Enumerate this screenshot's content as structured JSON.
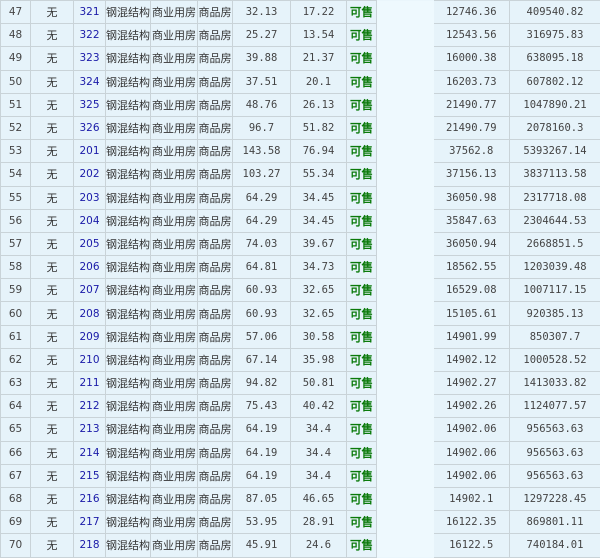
{
  "rows": [
    {
      "idx": "47",
      "none": "无",
      "room": "321",
      "structure": "钢混结构",
      "usage": "商业用房",
      "type": "商品房",
      "area": "32.13",
      "inner_area": "17.22",
      "status": "可售",
      "unit_price": "12746.36",
      "total": "409540.82"
    },
    {
      "idx": "48",
      "none": "无",
      "room": "322",
      "structure": "钢混结构",
      "usage": "商业用房",
      "type": "商品房",
      "area": "25.27",
      "inner_area": "13.54",
      "status": "可售",
      "unit_price": "12543.56",
      "total": "316975.83"
    },
    {
      "idx": "49",
      "none": "无",
      "room": "323",
      "structure": "钢混结构",
      "usage": "商业用房",
      "type": "商品房",
      "area": "39.88",
      "inner_area": "21.37",
      "status": "可售",
      "unit_price": "16000.38",
      "total": "638095.18"
    },
    {
      "idx": "50",
      "none": "无",
      "room": "324",
      "structure": "钢混结构",
      "usage": "商业用房",
      "type": "商品房",
      "area": "37.51",
      "inner_area": "20.1",
      "status": "可售",
      "unit_price": "16203.73",
      "total": "607802.12"
    },
    {
      "idx": "51",
      "none": "无",
      "room": "325",
      "structure": "钢混结构",
      "usage": "商业用房",
      "type": "商品房",
      "area": "48.76",
      "inner_area": "26.13",
      "status": "可售",
      "unit_price": "21490.77",
      "total": "1047890.21"
    },
    {
      "idx": "52",
      "none": "无",
      "room": "326",
      "structure": "钢混结构",
      "usage": "商业用房",
      "type": "商品房",
      "area": "96.7",
      "inner_area": "51.82",
      "status": "可售",
      "unit_price": "21490.79",
      "total": "2078160.3"
    },
    {
      "idx": "53",
      "none": "无",
      "room": "201",
      "structure": "钢混结构",
      "usage": "商业用房",
      "type": "商品房",
      "area": "143.58",
      "inner_area": "76.94",
      "status": "可售",
      "unit_price": "37562.8",
      "total": "5393267.14"
    },
    {
      "idx": "54",
      "none": "无",
      "room": "202",
      "structure": "钢混结构",
      "usage": "商业用房",
      "type": "商品房",
      "area": "103.27",
      "inner_area": "55.34",
      "status": "可售",
      "unit_price": "37156.13",
      "total": "3837113.58"
    },
    {
      "idx": "55",
      "none": "无",
      "room": "203",
      "structure": "钢混结构",
      "usage": "商业用房",
      "type": "商品房",
      "area": "64.29",
      "inner_area": "34.45",
      "status": "可售",
      "unit_price": "36050.98",
      "total": "2317718.08"
    },
    {
      "idx": "56",
      "none": "无",
      "room": "204",
      "structure": "钢混结构",
      "usage": "商业用房",
      "type": "商品房",
      "area": "64.29",
      "inner_area": "34.45",
      "status": "可售",
      "unit_price": "35847.63",
      "total": "2304644.53"
    },
    {
      "idx": "57",
      "none": "无",
      "room": "205",
      "structure": "钢混结构",
      "usage": "商业用房",
      "type": "商品房",
      "area": "74.03",
      "inner_area": "39.67",
      "status": "可售",
      "unit_price": "36050.94",
      "total": "2668851.5"
    },
    {
      "idx": "58",
      "none": "无",
      "room": "206",
      "structure": "钢混结构",
      "usage": "商业用房",
      "type": "商品房",
      "area": "64.81",
      "inner_area": "34.73",
      "status": "可售",
      "unit_price": "18562.55",
      "total": "1203039.48"
    },
    {
      "idx": "59",
      "none": "无",
      "room": "207",
      "structure": "钢混结构",
      "usage": "商业用房",
      "type": "商品房",
      "area": "60.93",
      "inner_area": "32.65",
      "status": "可售",
      "unit_price": "16529.08",
      "total": "1007117.15"
    },
    {
      "idx": "60",
      "none": "无",
      "room": "208",
      "structure": "钢混结构",
      "usage": "商业用房",
      "type": "商品房",
      "area": "60.93",
      "inner_area": "32.65",
      "status": "可售",
      "unit_price": "15105.61",
      "total": "920385.13"
    },
    {
      "idx": "61",
      "none": "无",
      "room": "209",
      "structure": "钢混结构",
      "usage": "商业用房",
      "type": "商品房",
      "area": "57.06",
      "inner_area": "30.58",
      "status": "可售",
      "unit_price": "14901.99",
      "total": "850307.7"
    },
    {
      "idx": "62",
      "none": "无",
      "room": "210",
      "structure": "钢混结构",
      "usage": "商业用房",
      "type": "商品房",
      "area": "67.14",
      "inner_area": "35.98",
      "status": "可售",
      "unit_price": "14902.12",
      "total": "1000528.52"
    },
    {
      "idx": "63",
      "none": "无",
      "room": "211",
      "structure": "钢混结构",
      "usage": "商业用房",
      "type": "商品房",
      "area": "94.82",
      "inner_area": "50.81",
      "status": "可售",
      "unit_price": "14902.27",
      "total": "1413033.82"
    },
    {
      "idx": "64",
      "none": "无",
      "room": "212",
      "structure": "钢混结构",
      "usage": "商业用房",
      "type": "商品房",
      "area": "75.43",
      "inner_area": "40.42",
      "status": "可售",
      "unit_price": "14902.26",
      "total": "1124077.57"
    },
    {
      "idx": "65",
      "none": "无",
      "room": "213",
      "structure": "钢混结构",
      "usage": "商业用房",
      "type": "商品房",
      "area": "64.19",
      "inner_area": "34.4",
      "status": "可售",
      "unit_price": "14902.06",
      "total": "956563.63"
    },
    {
      "idx": "66",
      "none": "无",
      "room": "214",
      "structure": "钢混结构",
      "usage": "商业用房",
      "type": "商品房",
      "area": "64.19",
      "inner_area": "34.4",
      "status": "可售",
      "unit_price": "14902.06",
      "total": "956563.63"
    },
    {
      "idx": "67",
      "none": "无",
      "room": "215",
      "structure": "钢混结构",
      "usage": "商业用房",
      "type": "商品房",
      "area": "64.19",
      "inner_area": "34.4",
      "status": "可售",
      "unit_price": "14902.06",
      "total": "956563.63"
    },
    {
      "idx": "68",
      "none": "无",
      "room": "216",
      "structure": "钢混结构",
      "usage": "商业用房",
      "type": "商品房",
      "area": "87.05",
      "inner_area": "46.65",
      "status": "可售",
      "unit_price": "14902.1",
      "total": "1297228.45"
    },
    {
      "idx": "69",
      "none": "无",
      "room": "217",
      "structure": "钢混结构",
      "usage": "商业用房",
      "type": "商品房",
      "area": "53.95",
      "inner_area": "28.91",
      "status": "可售",
      "unit_price": "16122.35",
      "total": "869801.11"
    },
    {
      "idx": "70",
      "none": "无",
      "room": "218",
      "structure": "钢混结构",
      "usage": "商业用房",
      "type": "商品房",
      "area": "45.91",
      "inner_area": "24.6",
      "status": "可售",
      "unit_price": "16122.5",
      "total": "740184.01"
    }
  ],
  "colors": {
    "status": "#0a7a0a",
    "room_link": "#1a1aa8",
    "background": "#e6f3fa"
  }
}
